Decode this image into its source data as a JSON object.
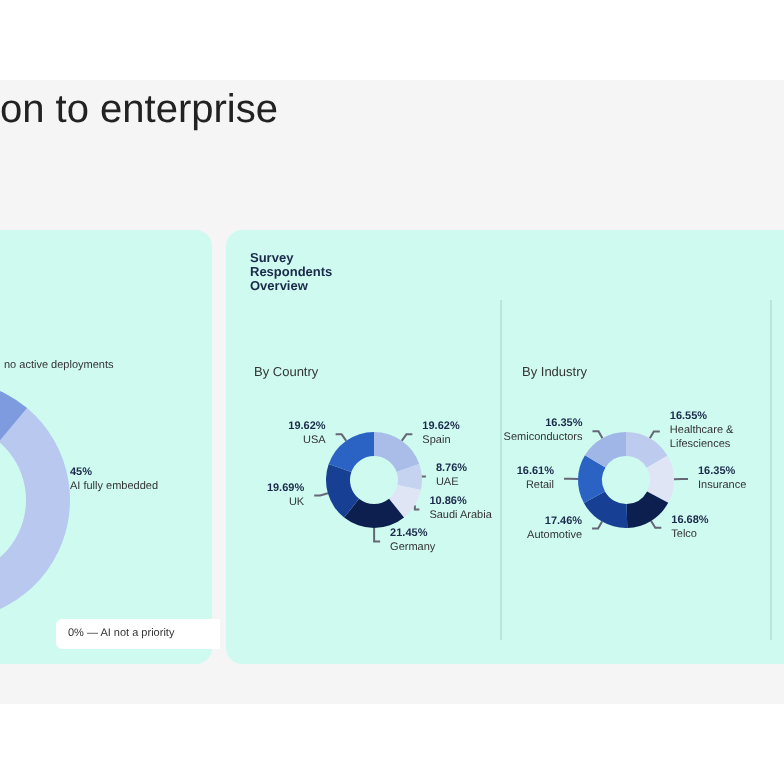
{
  "chart_data": [
    {
      "type": "donut",
      "title": "on to enterprise",
      "categories": [
        "AI fully embedded",
        "no active deployments",
        "AI not a priority"
      ],
      "values": [
        45,
        55,
        0
      ],
      "value_labels": [
        "45%",
        null,
        "0% —"
      ],
      "colors": [
        "#b9c8ee",
        "#7f9be0",
        "#0d1f4f"
      ]
    },
    {
      "type": "donut",
      "title": "Survey Respondents Overview",
      "subtitle": "By Country",
      "categories": [
        "Spain",
        "UAE",
        "Saudi Arabia",
        "Germany",
        "UK",
        "USA"
      ],
      "values": [
        19.62,
        8.76,
        10.86,
        21.45,
        19.69,
        19.62
      ],
      "value_labels": [
        "19.62%",
        "8.76%",
        "10.86%",
        "21.45%",
        "19.69%",
        "19.62%"
      ],
      "colors": [
        "#a9bde8",
        "#c5d3f0",
        "#dfe5f5",
        "#0d1f4f",
        "#173f94",
        "#2a63c4"
      ]
    },
    {
      "type": "donut",
      "subtitle": "By Industry",
      "categories": [
        "Healthcare & Lifesciences",
        "Insurance",
        "Telco",
        "Automotive",
        "Retail",
        "Semiconductors"
      ],
      "values": [
        16.55,
        16.35,
        16.68,
        17.46,
        16.61,
        16.35
      ],
      "value_labels": [
        "16.55%",
        "16.35%",
        "16.68%",
        "17.46%",
        "16.61%",
        "16.35%"
      ],
      "colors": [
        "#bccbee",
        "#dfe5f5",
        "#0d1f4f",
        "#173f94",
        "#2a63c4",
        "#9fb6e6"
      ]
    }
  ]
}
